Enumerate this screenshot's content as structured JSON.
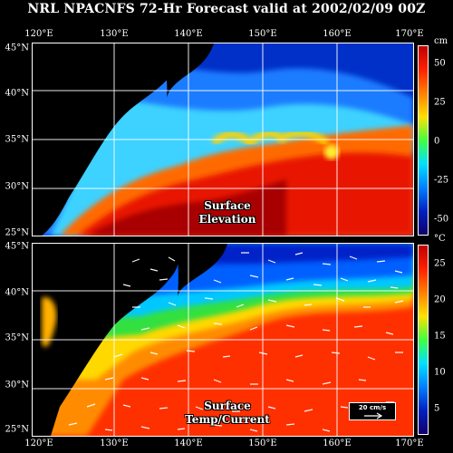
{
  "title": "NRL NPACNFS 72-Hr Forecast valid at 2002/02/09 00Z",
  "lon_labels_top": [
    "120°E",
    "130°E",
    "140°E",
    "150°E",
    "160°E",
    "170°E"
  ],
  "lon_labels_bottom": [
    "120°E",
    "130°E",
    "140°E",
    "150°E",
    "160°E",
    "170°E"
  ],
  "lat_labels": [
    "45°N",
    "40°N",
    "35°N",
    "30°N",
    "25°N"
  ],
  "panels": {
    "top": {
      "label_line1": "Surface",
      "label_line2": "Elevation",
      "unit": "cm",
      "colorbar_ticks": [
        "50",
        "25",
        "0",
        "-25",
        "-50"
      ],
      "range": [
        -60,
        60
      ]
    },
    "bottom": {
      "label_line1": "Surface",
      "label_line2": "Temp/Current",
      "unit": "°C",
      "colorbar_ticks": [
        "25",
        "20",
        "15",
        "10",
        "5"
      ],
      "range": [
        3,
        28
      ],
      "reference_vector_label": "20 cm/s"
    }
  },
  "colors": {
    "background": "#000000",
    "land": "#000000",
    "grid": "#ffffff"
  }
}
